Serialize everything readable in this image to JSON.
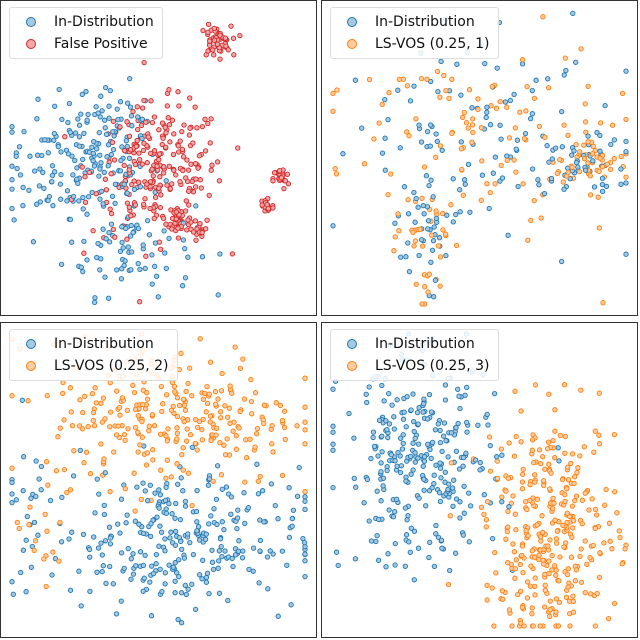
{
  "chart_data": [
    {
      "type": "scatter",
      "title": "",
      "xlabel": "",
      "ylabel": "",
      "xlim": [
        0,
        100
      ],
      "ylim": [
        0,
        100
      ],
      "grid": false,
      "legend": "top-left",
      "series": [
        {
          "name": "In-Distribution",
          "color": "#1f77b4",
          "clusters": [
            {
              "cx": 25,
              "cy": 48,
              "sx": 13,
              "sy": 10,
              "n": 170
            },
            {
              "cx": 40,
              "cy": 20,
              "sx": 11,
              "sy": 8,
              "n": 80
            },
            {
              "cx": 35,
              "cy": 65,
              "sx": 6,
              "sy": 5,
              "n": 30
            }
          ]
        },
        {
          "name": "False Positive",
          "color": "#d62728",
          "clusters": [
            {
              "cx": 50,
              "cy": 46,
              "sx": 11,
              "sy": 11,
              "n": 250
            },
            {
              "cx": 69,
              "cy": 89,
              "sx": 2.6,
              "sy": 2.6,
              "n": 55
            },
            {
              "cx": 91,
              "cy": 43,
              "sx": 1.3,
              "sy": 1.8,
              "n": 22
            },
            {
              "cx": 86,
              "cy": 34,
              "sx": 1.3,
              "sy": 1.8,
              "n": 22
            },
            {
              "cx": 57,
              "cy": 30,
              "sx": 1.8,
              "sy": 2.4,
              "n": 35
            },
            {
              "cx": 64,
              "cy": 25,
              "sx": 1.2,
              "sy": 1.6,
              "n": 16
            }
          ]
        }
      ]
    },
    {
      "type": "scatter",
      "title": "",
      "xlabel": "",
      "ylabel": "",
      "xlim": [
        0,
        100
      ],
      "ylim": [
        0,
        100
      ],
      "grid": false,
      "legend": "top-left",
      "series": [
        {
          "name": "In-Distribution",
          "color": "#1f77b4",
          "clusters": [
            {
              "cx": 50,
              "cy": 58,
              "sx": 24,
              "sy": 17,
              "n": 110
            },
            {
              "cx": 86,
              "cy": 48,
              "sx": 7,
              "sy": 4,
              "n": 40
            },
            {
              "cx": 32,
              "cy": 22,
              "sx": 5,
              "sy": 11,
              "n": 35
            }
          ]
        },
        {
          "name": "LS-VOS (0.25, 1)",
          "color": "#ff7f0e",
          "clusters": [
            {
              "cx": 50,
              "cy": 58,
              "sx": 24,
              "sy": 17,
              "n": 110
            },
            {
              "cx": 86,
              "cy": 48,
              "sx": 7,
              "sy": 4,
              "n": 40
            },
            {
              "cx": 32,
              "cy": 22,
              "sx": 5,
              "sy": 11,
              "n": 35
            }
          ]
        }
      ]
    },
    {
      "type": "scatter",
      "title": "",
      "xlabel": "",
      "ylabel": "",
      "xlim": [
        0,
        100
      ],
      "ylim": [
        0,
        100
      ],
      "grid": false,
      "legend": "top-left",
      "series": [
        {
          "name": "In-Distribution",
          "color": "#1f77b4",
          "clusters": [
            {
              "cx": 55,
              "cy": 30,
              "sx": 21,
              "sy": 12,
              "n": 290
            },
            {
              "cx": 8,
              "cy": 45,
              "sx": 4,
              "sy": 15,
              "n": 20
            }
          ]
        },
        {
          "name": "LS-VOS (0.25, 2)",
          "color": "#ff7f0e",
          "clusters": [
            {
              "cx": 55,
              "cy": 72,
              "sx": 21,
              "sy": 12,
              "n": 290
            },
            {
              "cx": 10,
              "cy": 30,
              "sx": 5,
              "sy": 12,
              "n": 15
            }
          ]
        }
      ]
    },
    {
      "type": "scatter",
      "title": "",
      "xlabel": "",
      "ylabel": "",
      "xlim": [
        0,
        100
      ],
      "ylim": [
        0,
        100
      ],
      "grid": false,
      "legend": "top-left",
      "series": [
        {
          "name": "In-Distribution",
          "color": "#1f77b4",
          "clusters": [
            {
              "cx": 30,
              "cy": 55,
              "sx": 13,
              "sy": 17,
              "n": 300
            }
          ]
        },
        {
          "name": "LS-VOS (0.25, 3)",
          "color": "#ff7f0e",
          "clusters": [
            {
              "cx": 74,
              "cy": 33,
              "sx": 11,
              "sy": 19,
              "n": 330
            }
          ]
        }
      ]
    }
  ]
}
